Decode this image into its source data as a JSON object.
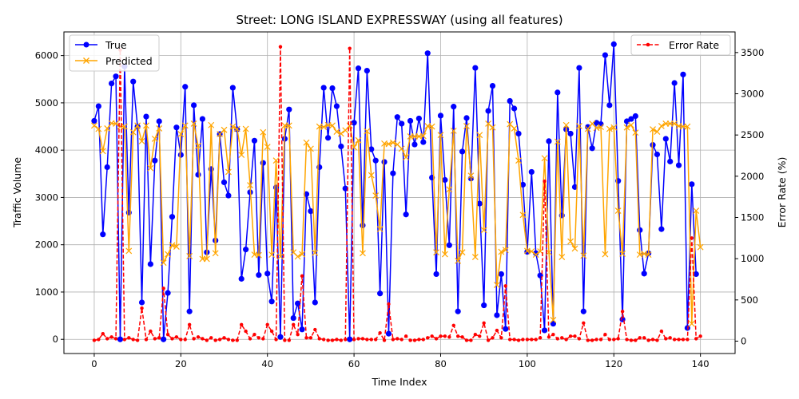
{
  "chart_data": {
    "type": "line",
    "title": "Street: LONG ISLAND EXPRESSWAY (using all features)",
    "xlabel": "Time Index",
    "ylabel_left": "Traffic Volume",
    "ylabel_right": "Error Rate (%)",
    "xlim": [
      -7,
      148
    ],
    "ylim_left": [
      -300,
      6500
    ],
    "ylim_right": [
      -150,
      3750
    ],
    "x_ticks": [
      "0",
      "20",
      "40",
      "60",
      "80",
      "100",
      "120",
      "140"
    ],
    "y_ticks_left": [
      "0",
      "1000",
      "2000",
      "3000",
      "4000",
      "5000",
      "6000"
    ],
    "y_ticks_right": [
      "0",
      "500",
      "1000",
      "1500",
      "2000",
      "2500",
      "3000",
      "3500"
    ],
    "grid": true,
    "legend_left": "top-left",
    "legend_right": "top-right",
    "series": [
      {
        "name": "True",
        "axis": "left",
        "color": "#0000ff",
        "marker": "circle",
        "values": [
          4620,
          4930,
          2220,
          3640,
          5410,
          5560,
          0,
          5770,
          2680,
          5450,
          4500,
          780,
          4710,
          1590,
          3780,
          4610,
          0,
          980,
          2590,
          4480,
          3900,
          5340,
          590,
          4950,
          3480,
          4660,
          1840,
          3600,
          2090,
          4340,
          3320,
          3040,
          5320,
          4440,
          1280,
          1900,
          3110,
          4200,
          1360,
          3730,
          1390,
          800,
          3210,
          50,
          4240,
          4860,
          450,
          760,
          210,
          3070,
          2710,
          780,
          3640,
          5320,
          4260,
          5310,
          4930,
          4080,
          3190,
          0,
          4580,
          5730,
          2410,
          5680,
          4020,
          3780,
          970,
          3750,
          120,
          3510,
          4700,
          4560,
          2640,
          4620,
          4120,
          4670,
          4170,
          6050,
          3420,
          1380,
          4730,
          3370,
          1990,
          4920,
          590,
          3970,
          4680,
          3400,
          5740,
          2870,
          720,
          4830,
          5360,
          510,
          1380,
          220,
          5040,
          4880,
          4350,
          3270,
          1850,
          3540,
          1820,
          1350,
          190,
          4190,
          330,
          5220,
          2620,
          4440,
          4350,
          3220,
          5740,
          590,
          4490,
          4040,
          4580,
          4550,
          6010,
          4950,
          6240,
          3350,
          420,
          4610,
          4660,
          4720,
          2310,
          1390,
          1820,
          4110,
          3910,
          2330,
          4240,
          3760,
          5420,
          3680,
          5600,
          240,
          3280,
          1380
        ]
      },
      {
        "name": "Predicted",
        "axis": "left",
        "color": "#ffa500",
        "marker": "x",
        "values": [
          4520,
          4450,
          3980,
          4460,
          4570,
          4560,
          4500,
          4500,
          1870,
          4380,
          4520,
          4190,
          4520,
          3620,
          4240,
          4460,
          1620,
          1800,
          1990,
          1960,
          4340,
          4520,
          1760,
          4560,
          4090,
          1700,
          1700,
          4530,
          1820,
          4340,
          4430,
          3540,
          4500,
          4450,
          3900,
          4450,
          3260,
          1790,
          1780,
          4380,
          4070,
          1790,
          3780,
          1750,
          4520,
          4520,
          1840,
          1750,
          1800,
          4160,
          4030,
          1830,
          4500,
          4490,
          4530,
          4520,
          4390,
          4350,
          4420,
          4520,
          4060,
          4210,
          1820,
          4400,
          3470,
          3040,
          2330,
          4140,
          4130,
          4160,
          4120,
          4030,
          3850,
          4290,
          4290,
          4290,
          4300,
          4510,
          4500,
          1840,
          4320,
          1800,
          3170,
          4410,
          1660,
          1840,
          4510,
          3460,
          1740,
          4320,
          2310,
          4560,
          4480,
          1150,
          1850,
          1890,
          4550,
          4460,
          3780,
          2630,
          1870,
          1860,
          1790,
          1860,
          3830,
          1840,
          410,
          4180,
          1740,
          4530,
          2070,
          1920,
          4510,
          1770,
          4450,
          4560,
          4470,
          4490,
          1800,
          4450,
          4480,
          2720,
          1810,
          4480,
          4530,
          4370,
          1790,
          1810,
          1790,
          4440,
          4390,
          4510,
          4560,
          4560,
          4560,
          4510,
          4500,
          4500,
          330,
          2720,
          1950
        ]
      },
      {
        "name": "Error Rate",
        "axis": "right",
        "color": "#ff0000",
        "marker": "dot",
        "dashed": true,
        "values": [
          10,
          20,
          90,
          30,
          50,
          30,
          3530,
          20,
          40,
          20,
          10,
          400,
          20,
          120,
          30,
          40,
          640,
          80,
          30,
          50,
          20,
          20,
          200,
          30,
          50,
          30,
          10,
          40,
          10,
          20,
          40,
          20,
          10,
          10,
          200,
          120,
          30,
          80,
          40,
          30,
          200,
          120,
          20,
          3570,
          10,
          10,
          200,
          80,
          790,
          40,
          40,
          140,
          30,
          20,
          10,
          10,
          20,
          10,
          20,
          3550,
          20,
          30,
          30,
          20,
          20,
          20,
          100,
          10,
          450,
          20,
          30,
          20,
          60,
          10,
          10,
          20,
          20,
          40,
          60,
          30,
          60,
          60,
          50,
          190,
          60,
          50,
          10,
          10,
          80,
          60,
          220,
          10,
          40,
          130,
          40,
          670,
          20,
          20,
          10,
          20,
          20,
          20,
          20,
          40,
          1940,
          50,
          80,
          30,
          40,
          20,
          60,
          60,
          30,
          220,
          10,
          10,
          20,
          20,
          80,
          20,
          20,
          30,
          360,
          20,
          10,
          10,
          40,
          40,
          10,
          20,
          10,
          120,
          30,
          40,
          20,
          20,
          20,
          20,
          1250,
          30,
          60
        ]
      }
    ]
  }
}
